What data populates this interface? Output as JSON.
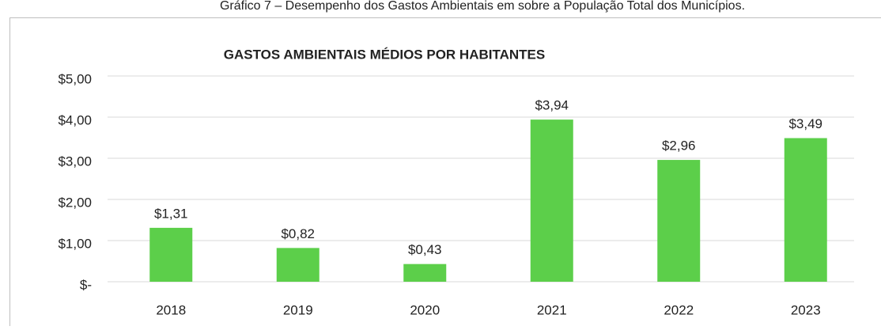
{
  "caption": "Gráfico 7 – Desempenho dos Gastos Ambientais em sobre a População Total dos Municípios.",
  "chart_data": {
    "type": "bar",
    "title": "GASTOS AMBIENTAIS MÉDIOS POR HABITANTES",
    "categories": [
      "2018",
      "2019",
      "2020",
      "2021",
      "2022",
      "2023"
    ],
    "values": [
      1.31,
      0.82,
      0.43,
      3.94,
      2.96,
      3.49
    ],
    "value_labels": [
      "$1,31",
      "$0,82",
      "$0,43",
      "$3,94",
      "$2,96",
      "$3,49"
    ],
    "color": "#5ccf4a",
    "ylim": [
      0,
      5
    ],
    "yticks": [
      {
        "value": 0,
        "label": "$-"
      },
      {
        "value": 1,
        "label": "$1,00"
      },
      {
        "value": 2,
        "label": "$2,00"
      },
      {
        "value": 3,
        "label": "$3,00"
      },
      {
        "value": 4,
        "label": "$4,00"
      },
      {
        "value": 5,
        "label": "$5,00"
      }
    ],
    "grid": true
  }
}
